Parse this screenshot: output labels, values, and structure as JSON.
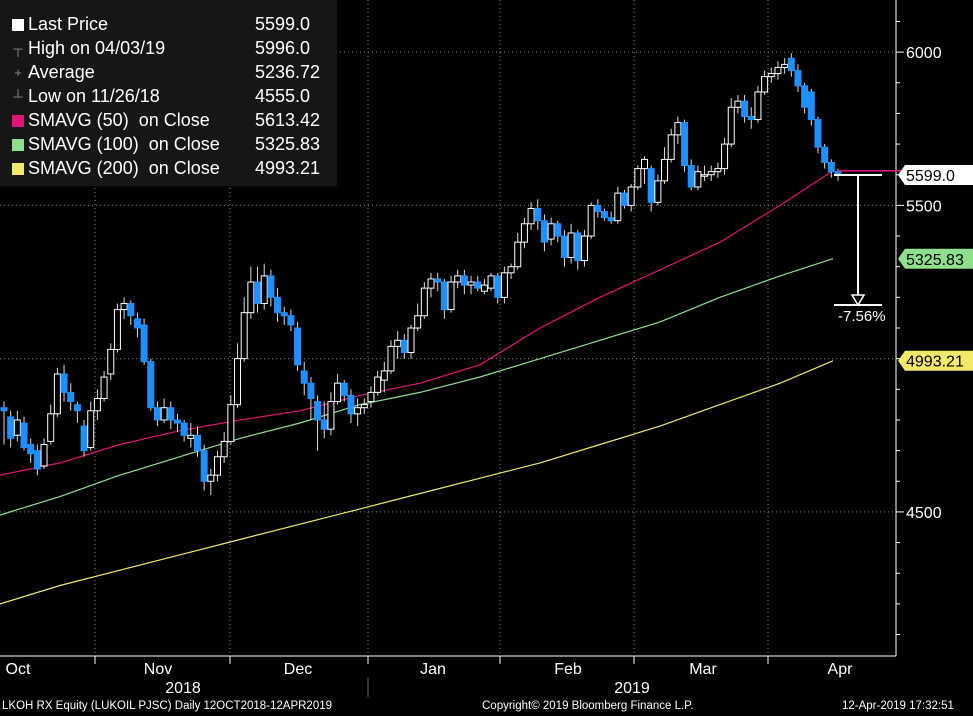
{
  "legend": {
    "rows": [
      {
        "label": "Last Price",
        "value": "5599.0",
        "icon": "white-square-icon",
        "color": "#ffffff"
      },
      {
        "label": "High on 04/03/19",
        "value": "5996.0",
        "icon": "high-marker-icon",
        "color": "#888888"
      },
      {
        "label": "Average",
        "value": "5236.72",
        "icon": "average-marker-icon",
        "color": "#888888"
      },
      {
        "label": "Low on 11/26/18",
        "value": "4555.0",
        "icon": "low-marker-icon",
        "color": "#888888"
      },
      {
        "label": "SMAVG (50)  on Close",
        "value": "5613.42",
        "icon": "magenta-square-icon",
        "color": "#e0157a"
      },
      {
        "label": "SMAVG (100)  on Close",
        "value": "5325.83",
        "icon": "green-square-icon",
        "color": "#8ee08e"
      },
      {
        "label": "SMAVG (200)  on Close",
        "value": "4993.21",
        "icon": "yellow-square-icon",
        "color": "#f2e86a"
      }
    ]
  },
  "chart_data": {
    "type": "candlestick",
    "y_ticks": [
      4500,
      5000,
      5500,
      6000
    ],
    "ylim": [
      4030,
      6170
    ],
    "y_tick_labels": [
      "4500",
      "",
      "5500",
      "6000"
    ],
    "month_labels": [
      "Oct",
      "Nov",
      "Dec",
      "Jan",
      "Feb",
      "Mar",
      "Apr"
    ],
    "year_labels": [
      "2018",
      "2019"
    ],
    "colors": {
      "up": "#ffffff",
      "down": "#1e90ff",
      "sma50": "#e0157a",
      "sma100": "#8ee08e",
      "sma200": "#f2e86a"
    },
    "candles": [
      [
        4840,
        4830,
        4720,
        4860
      ],
      [
        4810,
        4740,
        4710,
        4830
      ],
      [
        4750,
        4800,
        4730,
        4830
      ],
      [
        4790,
        4710,
        4700,
        4810
      ],
      [
        4720,
        4690,
        4660,
        4740
      ],
      [
        4700,
        4640,
        4620,
        4720
      ],
      [
        4650,
        4720,
        4640,
        4740
      ],
      [
        4730,
        4820,
        4720,
        4850
      ],
      [
        4820,
        4950,
        4810,
        4970
      ],
      [
        4950,
        4890,
        4860,
        4980
      ],
      [
        4890,
        4860,
        4830,
        4920
      ],
      [
        4850,
        4830,
        4790,
        4860
      ],
      [
        4780,
        4700,
        4680,
        4800
      ],
      [
        4710,
        4830,
        4700,
        4860
      ],
      [
        4830,
        4870,
        4800,
        4900
      ],
      [
        4870,
        4940,
        4860,
        4960
      ],
      [
        4950,
        5030,
        4930,
        5050
      ],
      [
        5030,
        5160,
        5020,
        5180
      ],
      [
        5160,
        5180,
        5130,
        5200
      ],
      [
        5180,
        5140,
        5110,
        5190
      ],
      [
        5130,
        5100,
        5070,
        5150
      ],
      [
        5110,
        4990,
        4980,
        5130
      ],
      [
        4990,
        4840,
        4830,
        5000
      ],
      [
        4840,
        4800,
        4780,
        4860
      ],
      [
        4800,
        4840,
        4790,
        4870
      ],
      [
        4840,
        4800,
        4770,
        4860
      ],
      [
        4800,
        4790,
        4760,
        4820
      ],
      [
        4790,
        4750,
        4730,
        4800
      ],
      [
        4740,
        4750,
        4710,
        4790
      ],
      [
        4750,
        4700,
        4680,
        4780
      ],
      [
        4700,
        4600,
        4570,
        4720
      ],
      [
        4600,
        4620,
        4555,
        4640
      ],
      [
        4620,
        4680,
        4600,
        4700
      ],
      [
        4680,
        4730,
        4660,
        4760
      ],
      [
        4730,
        4850,
        4720,
        4880
      ],
      [
        4850,
        5000,
        4840,
        5050
      ],
      [
        5000,
        5150,
        4990,
        5200
      ],
      [
        5150,
        5250,
        5130,
        5300
      ],
      [
        5250,
        5180,
        5150,
        5300
      ],
      [
        5180,
        5270,
        5160,
        5310
      ],
      [
        5270,
        5200,
        5170,
        5290
      ],
      [
        5200,
        5150,
        5120,
        5230
      ],
      [
        5150,
        5140,
        5110,
        5170
      ],
      [
        5140,
        5110,
        5090,
        5160
      ],
      [
        5100,
        4980,
        4960,
        5120
      ],
      [
        4960,
        4920,
        4880,
        4990
      ],
      [
        4920,
        4870,
        4800,
        4940
      ],
      [
        4860,
        4800,
        4700,
        4880
      ],
      [
        4800,
        4770,
        4740,
        4860
      ],
      [
        4770,
        4860,
        4750,
        4890
      ],
      [
        4860,
        4920,
        4850,
        4950
      ],
      [
        4920,
        4880,
        4860,
        4930
      ],
      [
        4880,
        4820,
        4790,
        4900
      ],
      [
        4820,
        4840,
        4780,
        4870
      ],
      [
        4840,
        4850,
        4820,
        4870
      ],
      [
        4860,
        4890,
        4840,
        4910
      ],
      [
        4890,
        4940,
        4880,
        4960
      ],
      [
        4930,
        4960,
        4890,
        4990
      ],
      [
        4960,
        5040,
        4950,
        5060
      ],
      [
        5040,
        5060,
        5000,
        5090
      ],
      [
        5060,
        5020,
        5000,
        5080
      ],
      [
        5020,
        5100,
        5000,
        5110
      ],
      [
        5100,
        5140,
        5090,
        5180
      ],
      [
        5140,
        5230,
        5130,
        5250
      ],
      [
        5230,
        5260,
        5200,
        5280
      ],
      [
        5260,
        5250,
        5220,
        5280
      ],
      [
        5250,
        5160,
        5130,
        5260
      ],
      [
        5160,
        5250,
        5150,
        5270
      ],
      [
        5250,
        5270,
        5230,
        5290
      ],
      [
        5270,
        5240,
        5210,
        5290
      ],
      [
        5240,
        5250,
        5210,
        5270
      ],
      [
        5250,
        5230,
        5220,
        5270
      ],
      [
        5220,
        5240,
        5210,
        5260
      ],
      [
        5230,
        5270,
        5220,
        5280
      ],
      [
        5270,
        5200,
        5180,
        5280
      ],
      [
        5200,
        5280,
        5180,
        5300
      ],
      [
        5280,
        5300,
        5260,
        5310
      ],
      [
        5300,
        5380,
        5290,
        5410
      ],
      [
        5380,
        5440,
        5360,
        5460
      ],
      [
        5440,
        5490,
        5420,
        5510
      ],
      [
        5490,
        5450,
        5420,
        5520
      ],
      [
        5450,
        5380,
        5350,
        5470
      ],
      [
        5390,
        5440,
        5370,
        5460
      ],
      [
        5440,
        5400,
        5380,
        5450
      ],
      [
        5400,
        5330,
        5300,
        5420
      ],
      [
        5330,
        5410,
        5310,
        5440
      ],
      [
        5410,
        5320,
        5290,
        5420
      ],
      [
        5320,
        5400,
        5300,
        5420
      ],
      [
        5400,
        5500,
        5390,
        5510
      ],
      [
        5500,
        5480,
        5460,
        5520
      ],
      [
        5480,
        5460,
        5450,
        5490
      ],
      [
        5460,
        5450,
        5440,
        5480
      ],
      [
        5450,
        5540,
        5440,
        5560
      ],
      [
        5540,
        5500,
        5490,
        5550
      ],
      [
        5500,
        5560,
        5480,
        5570
      ],
      [
        5560,
        5620,
        5550,
        5630
      ],
      [
        5620,
        5650,
        5570,
        5660
      ],
      [
        5620,
        5510,
        5480,
        5630
      ],
      [
        5510,
        5580,
        5500,
        5600
      ],
      [
        5580,
        5650,
        5570,
        5690
      ],
      [
        5650,
        5730,
        5640,
        5750
      ],
      [
        5730,
        5770,
        5700,
        5790
      ],
      [
        5770,
        5630,
        5610,
        5780
      ],
      [
        5630,
        5560,
        5550,
        5650
      ],
      [
        5560,
        5610,
        5550,
        5630
      ],
      [
        5600,
        5600,
        5580,
        5630
      ],
      [
        5600,
        5610,
        5580,
        5630
      ],
      [
        5610,
        5620,
        5590,
        5640
      ],
      [
        5620,
        5700,
        5600,
        5720
      ],
      [
        5700,
        5820,
        5690,
        5850
      ],
      [
        5820,
        5840,
        5800,
        5860
      ],
      [
        5840,
        5790,
        5770,
        5860
      ],
      [
        5790,
        5780,
        5750,
        5820
      ],
      [
        5780,
        5870,
        5770,
        5890
      ],
      [
        5870,
        5920,
        5860,
        5940
      ],
      [
        5920,
        5930,
        5900,
        5950
      ],
      [
        5930,
        5950,
        5910,
        5970
      ],
      [
        5950,
        5960,
        5930,
        5980
      ],
      [
        5980,
        5940,
        5920,
        5996
      ],
      [
        5940,
        5890,
        5870,
        5960
      ],
      [
        5890,
        5820,
        5800,
        5900
      ],
      [
        5870,
        5780,
        5760,
        5880
      ],
      [
        5780,
        5690,
        5670,
        5790
      ],
      [
        5690,
        5640,
        5620,
        5700
      ],
      [
        5640,
        5610,
        5590,
        5650
      ],
      [
        5610,
        5599,
        5580,
        5620
      ]
    ],
    "sma50": [
      [
        0,
        4620
      ],
      [
        60,
        4660
      ],
      [
        120,
        4720
      ],
      [
        180,
        4765
      ],
      [
        240,
        4800
      ],
      [
        300,
        4830
      ],
      [
        360,
        4880
      ],
      [
        420,
        4920
      ],
      [
        480,
        4980
      ],
      [
        540,
        5100
      ],
      [
        600,
        5200
      ],
      [
        660,
        5290
      ],
      [
        720,
        5380
      ],
      [
        780,
        5500
      ],
      [
        833,
        5613
      ]
    ],
    "sma100": [
      [
        0,
        4490
      ],
      [
        60,
        4550
      ],
      [
        120,
        4620
      ],
      [
        180,
        4680
      ],
      [
        240,
        4740
      ],
      [
        300,
        4790
      ],
      [
        360,
        4850
      ],
      [
        420,
        4890
      ],
      [
        480,
        4940
      ],
      [
        540,
        5000
      ],
      [
        600,
        5060
      ],
      [
        660,
        5120
      ],
      [
        720,
        5200
      ],
      [
        780,
        5270
      ],
      [
        833,
        5326
      ]
    ],
    "sma200": [
      [
        0,
        4200
      ],
      [
        60,
        4260
      ],
      [
        120,
        4310
      ],
      [
        180,
        4360
      ],
      [
        240,
        4410
      ],
      [
        300,
        4460
      ],
      [
        360,
        4510
      ],
      [
        420,
        4560
      ],
      [
        480,
        4610
      ],
      [
        540,
        4660
      ],
      [
        600,
        4720
      ],
      [
        660,
        4780
      ],
      [
        720,
        4850
      ],
      [
        780,
        4920
      ],
      [
        833,
        4993
      ]
    ],
    "last_price": 5599.0,
    "labels": {
      "last": "5599.0",
      "sma100": "5325.83",
      "sma200": "4993.21"
    },
    "drawdown": {
      "from": 5599.0,
      "to": 5175,
      "label": "-7.56%"
    }
  },
  "footer": {
    "ticker": "LKOH RX Equity (LUKOIL PJSC)  Daily 12OCT2018-12APR2019",
    "copyright": "Copyright© 2019 Bloomberg Finance L.P.",
    "timestamp": "12-Apr-2019 17:32:51"
  }
}
